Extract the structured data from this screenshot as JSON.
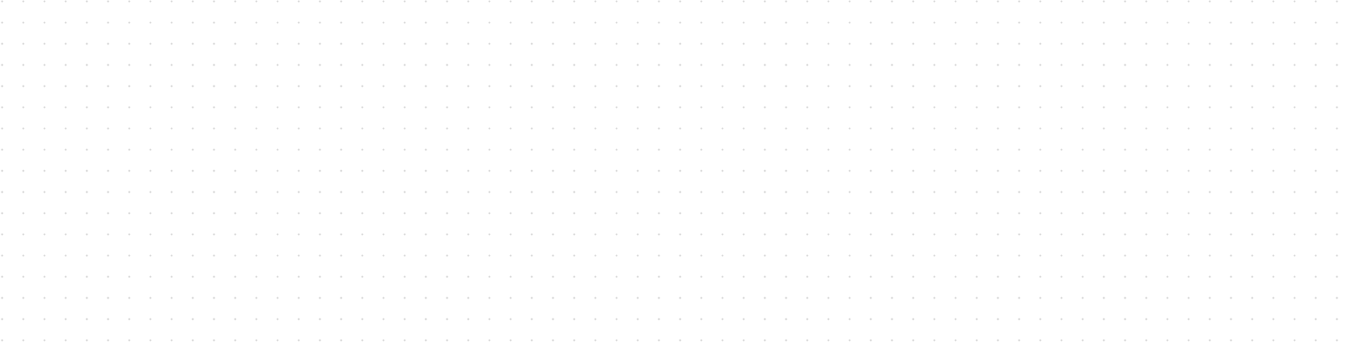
{
  "canvas": {
    "background_color": "#ffffff",
    "grid_dot_color": "#d9d9d9",
    "grid": "dotted"
  }
}
